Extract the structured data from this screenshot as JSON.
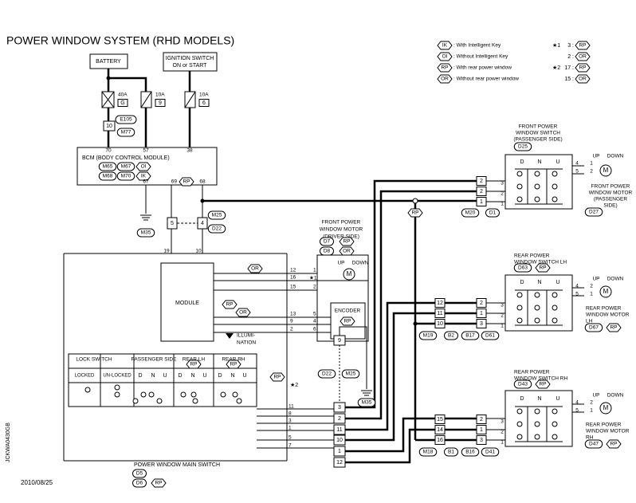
{
  "title": "POWER WINDOW SYSTEM (RHD MODELS)",
  "legend": {
    "items": [
      {
        "symbol": "IK",
        "text": ": With Intelligent Key"
      },
      {
        "symbol": "OI",
        "text": ": Without Intelligent Key"
      },
      {
        "symbol": "RP",
        "text": ": With rear power window"
      },
      {
        "symbol": "OR",
        "text": ": Without rear power window"
      }
    ],
    "notes": [
      {
        "mark": "★1",
        "entries": [
          {
            "pin": "3 :",
            "symbol": "RP"
          },
          {
            "pin": "2 :",
            "symbol": "OR"
          }
        ]
      },
      {
        "mark": "★2",
        "entries": [
          {
            "pin": "17 :",
            "symbol": "RP"
          },
          {
            "pin": "15 :",
            "symbol": "OR"
          }
        ]
      }
    ]
  },
  "power": {
    "battery": "BATTERY",
    "ignition": [
      "IGNITION SWITCH",
      "ON or START"
    ],
    "fuses": [
      {
        "rating": "40A",
        "number": "G"
      },
      {
        "rating": "10A",
        "number": "9"
      },
      {
        "rating": "10A",
        "number": "6"
      }
    ],
    "link_pin": "10",
    "link_connectors": [
      "E105",
      "M77"
    ]
  },
  "bcm": {
    "name": "BCM (BODY CONTROL MODULE)",
    "top_pins": [
      "70",
      "57",
      "38"
    ],
    "connectors": [
      "M65",
      "M67",
      "OI",
      "M68",
      "M70",
      "IK"
    ],
    "bottom_pins": [
      "67",
      "69",
      "RP",
      "68"
    ],
    "ground": "M35"
  },
  "joint": {
    "pins": [
      "5",
      "4"
    ],
    "connectors": [
      "M25",
      "D22"
    ],
    "wire_pins": [
      "19",
      "10"
    ]
  },
  "main_switch": {
    "name": "POWER WINDOW MAIN SWITCH",
    "connectors": [
      "D5",
      "D6",
      "RP"
    ],
    "module": "MODULE",
    "badges": [
      "OR",
      "RP",
      "OR",
      "RP"
    ],
    "illumination": [
      "ILLUMI-",
      "NATION"
    ],
    "star": "★2",
    "table": {
      "headers": [
        "LOCK SWITCH",
        "PASSENGER SIDE",
        "REAR LH",
        "REAR RH"
      ],
      "header_badges": [
        "RP",
        "RP"
      ],
      "columns": [
        "LOCKED",
        "UN-LOCKED",
        "D",
        "N",
        "U",
        "D",
        "N",
        "U",
        "D",
        "N",
        "U"
      ]
    },
    "motor_pins": [
      "12",
      "16",
      "15",
      "13",
      "9",
      "2"
    ],
    "motor_star": "★1",
    "out_pins": [
      "11",
      "8",
      "3",
      "1",
      "5",
      "7"
    ]
  },
  "driver_motor": {
    "name": [
      "FRONT POWER",
      "WINDOW MOTOR",
      "(DRIVER SIDE)"
    ],
    "connectors": [
      "D7",
      "RP",
      "D8",
      "OR"
    ],
    "up": "UP",
    "down": "DOWN",
    "motor": "M",
    "pins": [
      "1",
      "2",
      "5",
      "4",
      "6"
    ],
    "encoder": "ENCODER",
    "encoder_badge": "RP"
  },
  "joint_connector": {
    "pins": [
      "3",
      "2",
      "11",
      "10",
      "1",
      "12"
    ],
    "ground_pin": "9",
    "connectors": [
      "D22",
      "M25"
    ],
    "ground": "M35"
  },
  "front_passenger": {
    "switch_name": [
      "FRONT POWER",
      "WINDOW SWITCH",
      "(PASSENGER SIDE)"
    ],
    "switch_connector": "D25",
    "dnu": [
      "D",
      "N",
      "U"
    ],
    "inline_pins": [
      "2",
      "2",
      "1"
    ],
    "switch_pins": [
      "3",
      "2",
      "1"
    ],
    "connectors": [
      "M20",
      "D1"
    ],
    "up": "UP",
    "down": "DOWN",
    "motor": "M",
    "motor_pins": [
      "4",
      "5",
      "1",
      "2"
    ],
    "motor_name": [
      "FRONT POWER",
      "WINDOW MOTOR",
      "(PASSENGER",
      "SIDE)"
    ],
    "motor_connector": "D27",
    "junction_badge": "RP"
  },
  "rear_lh": {
    "switch_name": [
      "REAR POWER",
      "WINDOW SWITCH LH"
    ],
    "switch_connector": "D63",
    "switch_badge": "RP",
    "dnu": [
      "D",
      "N",
      "U"
    ],
    "inline_left": [
      "12",
      "11",
      "10"
    ],
    "inline_right": [
      "2",
      "1",
      "3"
    ],
    "switch_pins": [
      "3",
      "2",
      "1"
    ],
    "connectors": [
      "M19",
      "B2",
      "B17",
      "D61"
    ],
    "up": "UP",
    "down": "DOWN",
    "motor": "M",
    "motor_pins": [
      "4",
      "2",
      "5",
      "1"
    ],
    "motor_name": [
      "REAR POWER",
      "WINDOW MOTOR",
      "LH"
    ],
    "motor_connector": "D67",
    "motor_badge": "RP"
  },
  "rear_rh": {
    "switch_name": [
      "REAR POWER",
      "WINDOW SWITCH RH"
    ],
    "switch_connector": "D43",
    "switch_badge": "RP",
    "dnu": [
      "D",
      "N",
      "U"
    ],
    "inline_left": [
      "15",
      "14",
      "16"
    ],
    "inline_right": [
      "2",
      "1",
      "3"
    ],
    "switch_pins": [
      "3",
      "2",
      "1"
    ],
    "connectors": [
      "M18",
      "B1",
      "B16",
      "D41"
    ],
    "up": "UP",
    "down": "DOWN",
    "motor": "M",
    "motor_pins": [
      "4",
      "2",
      "5",
      "1"
    ],
    "motor_name": [
      "REAR POWER",
      "WINDOW MOTOR",
      "RH"
    ],
    "motor_connector": "D47",
    "motor_badge": "RP"
  },
  "footer": {
    "date": "2010/08/25",
    "code": "JCKWA0430GB"
  }
}
